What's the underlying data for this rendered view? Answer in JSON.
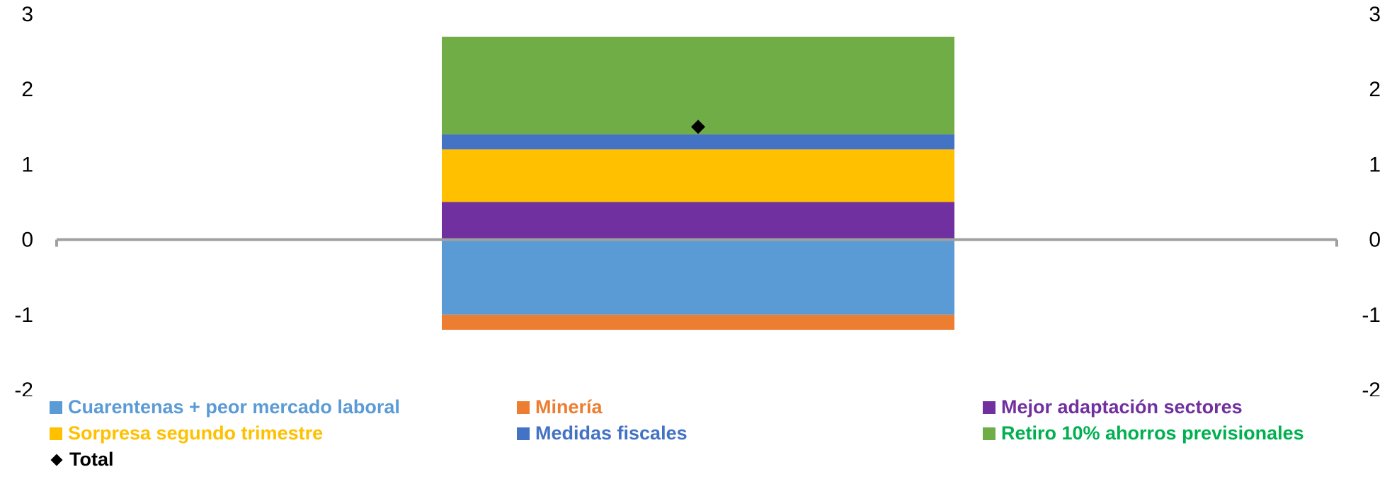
{
  "chart_data": {
    "type": "bar",
    "stacked": true,
    "categories": [
      ""
    ],
    "ylim": [
      -2,
      3
    ],
    "yticks": [
      "3",
      "2",
      "1",
      "0",
      "-1",
      "-2"
    ],
    "series": [
      {
        "name": "Cuarentenas + peor mercado laboral",
        "values": [
          -1.0
        ],
        "color": "#5B9BD5"
      },
      {
        "name": "Minería",
        "values": [
          -0.2
        ],
        "color": "#ED7D31"
      },
      {
        "name": "Mejor adaptación sectores",
        "values": [
          0.5
        ],
        "color": "#7030A0"
      },
      {
        "name": "Sorpresa segundo trimestre",
        "values": [
          0.7
        ],
        "color": "#FFC000"
      },
      {
        "name": "Medidas fiscales",
        "values": [
          0.2
        ],
        "color": "#4472C4"
      },
      {
        "name": "Retiro 10% ahorros previsionales",
        "values": [
          1.3
        ],
        "color": "#70AD47"
      }
    ],
    "total": {
      "name": "Total",
      "values": [
        1.5
      ],
      "color": "#000000",
      "marker": "diamond"
    },
    "legend_position": "bottom",
    "grid": false,
    "zero_line_color": "#A0A0A0",
    "legend_text_colors": {
      "Cuarentenas + peor mercado laboral": "#5B9BD5",
      "Minería": "#ED7D31",
      "Mejor adaptación sectores": "#7030A0",
      "Sorpresa segundo trimestre": "#FFC000",
      "Medidas fiscales": "#4472C4",
      "Retiro 10% ahorros previsionales": "#00B050",
      "Total": "#000000"
    }
  }
}
